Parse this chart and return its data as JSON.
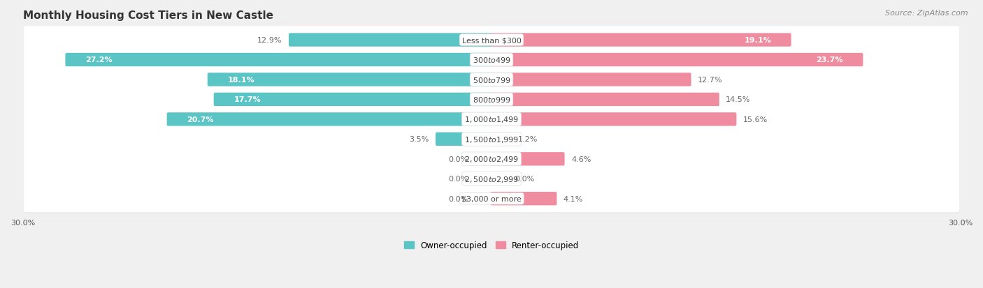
{
  "title": "Monthly Housing Cost Tiers in New Castle",
  "source": "Source: ZipAtlas.com",
  "categories": [
    "Less than $300",
    "$300 to $499",
    "$500 to $799",
    "$800 to $999",
    "$1,000 to $1,499",
    "$1,500 to $1,999",
    "$2,000 to $2,499",
    "$2,500 to $2,999",
    "$3,000 or more"
  ],
  "owner_values": [
    12.9,
    27.2,
    18.1,
    17.7,
    20.7,
    3.5,
    0.0,
    0.0,
    0.0
  ],
  "renter_values": [
    19.1,
    23.7,
    12.7,
    14.5,
    15.6,
    1.2,
    4.6,
    0.0,
    4.1
  ],
  "owner_color": "#5bc4c4",
  "renter_color": "#f08ca0",
  "owner_label": "Owner-occupied",
  "renter_label": "Renter-occupied",
  "axis_limit": 30.0,
  "background_color": "#f0f0f0",
  "row_bg_color": "#ffffff",
  "title_fontsize": 11,
  "source_fontsize": 8,
  "label_fontsize": 8,
  "category_fontsize": 8,
  "axis_label_fontsize": 8
}
